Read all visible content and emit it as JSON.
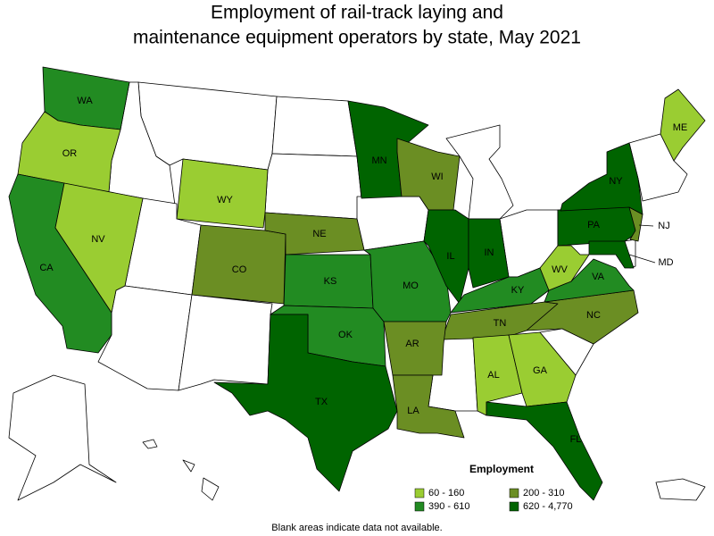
{
  "title": [
    "Employment of rail-track laying and",
    "maintenance equipment operators by state, May 2021"
  ],
  "legend": {
    "title": "Employment",
    "items": [
      {
        "label": "60 - 160",
        "color": "#9acd32"
      },
      {
        "label": "200 - 310",
        "color": "#6b8e23"
      },
      {
        "label": "390 - 610",
        "color": "#228b22"
      },
      {
        "label": "620 - 4,770",
        "color": "#006400"
      }
    ]
  },
  "states": [
    {
      "label": "WA",
      "color": "#228b22"
    },
    {
      "label": "OR",
      "color": "#9acd32"
    },
    {
      "label": "CA",
      "color": "#228b22"
    },
    {
      "label": "NV",
      "color": "#9acd32"
    },
    {
      "label": "WY",
      "color": "#9acd32"
    },
    {
      "label": "CO",
      "color": "#6b8e23"
    },
    {
      "label": "NE",
      "color": "#6b8e23"
    },
    {
      "label": "KS",
      "color": "#228b22"
    },
    {
      "label": "OK",
      "color": "#228b22"
    },
    {
      "label": "TX",
      "color": "#006400"
    },
    {
      "label": "MN",
      "color": "#006400"
    },
    {
      "label": "MO",
      "color": "#228b22"
    },
    {
      "label": "WI",
      "color": "#6b8e23"
    },
    {
      "label": "IL",
      "color": "#006400"
    },
    {
      "label": "IN",
      "color": "#006400"
    },
    {
      "label": "KY",
      "color": "#228b22"
    },
    {
      "label": "TN",
      "color": "#6b8e23"
    },
    {
      "label": "AR",
      "color": "#6b8e23"
    },
    {
      "label": "LA",
      "color": "#6b8e23"
    },
    {
      "label": "AL",
      "color": "#9acd32"
    },
    {
      "label": "GA",
      "color": "#9acd32"
    },
    {
      "label": "FL",
      "color": "#006400"
    },
    {
      "label": "NC",
      "color": "#6b8e23"
    },
    {
      "label": "VA",
      "color": "#228b22"
    },
    {
      "label": "WV",
      "color": "#9acd32"
    },
    {
      "label": "PA",
      "color": "#006400"
    },
    {
      "label": "MD",
      "color": "#006400"
    },
    {
      "label": "NJ",
      "color": "#6b8e23"
    },
    {
      "label": "NY",
      "color": "#006400"
    },
    {
      "label": "ME",
      "color": "#9acd32"
    }
  ],
  "note": "Blank areas indicate data not available."
}
